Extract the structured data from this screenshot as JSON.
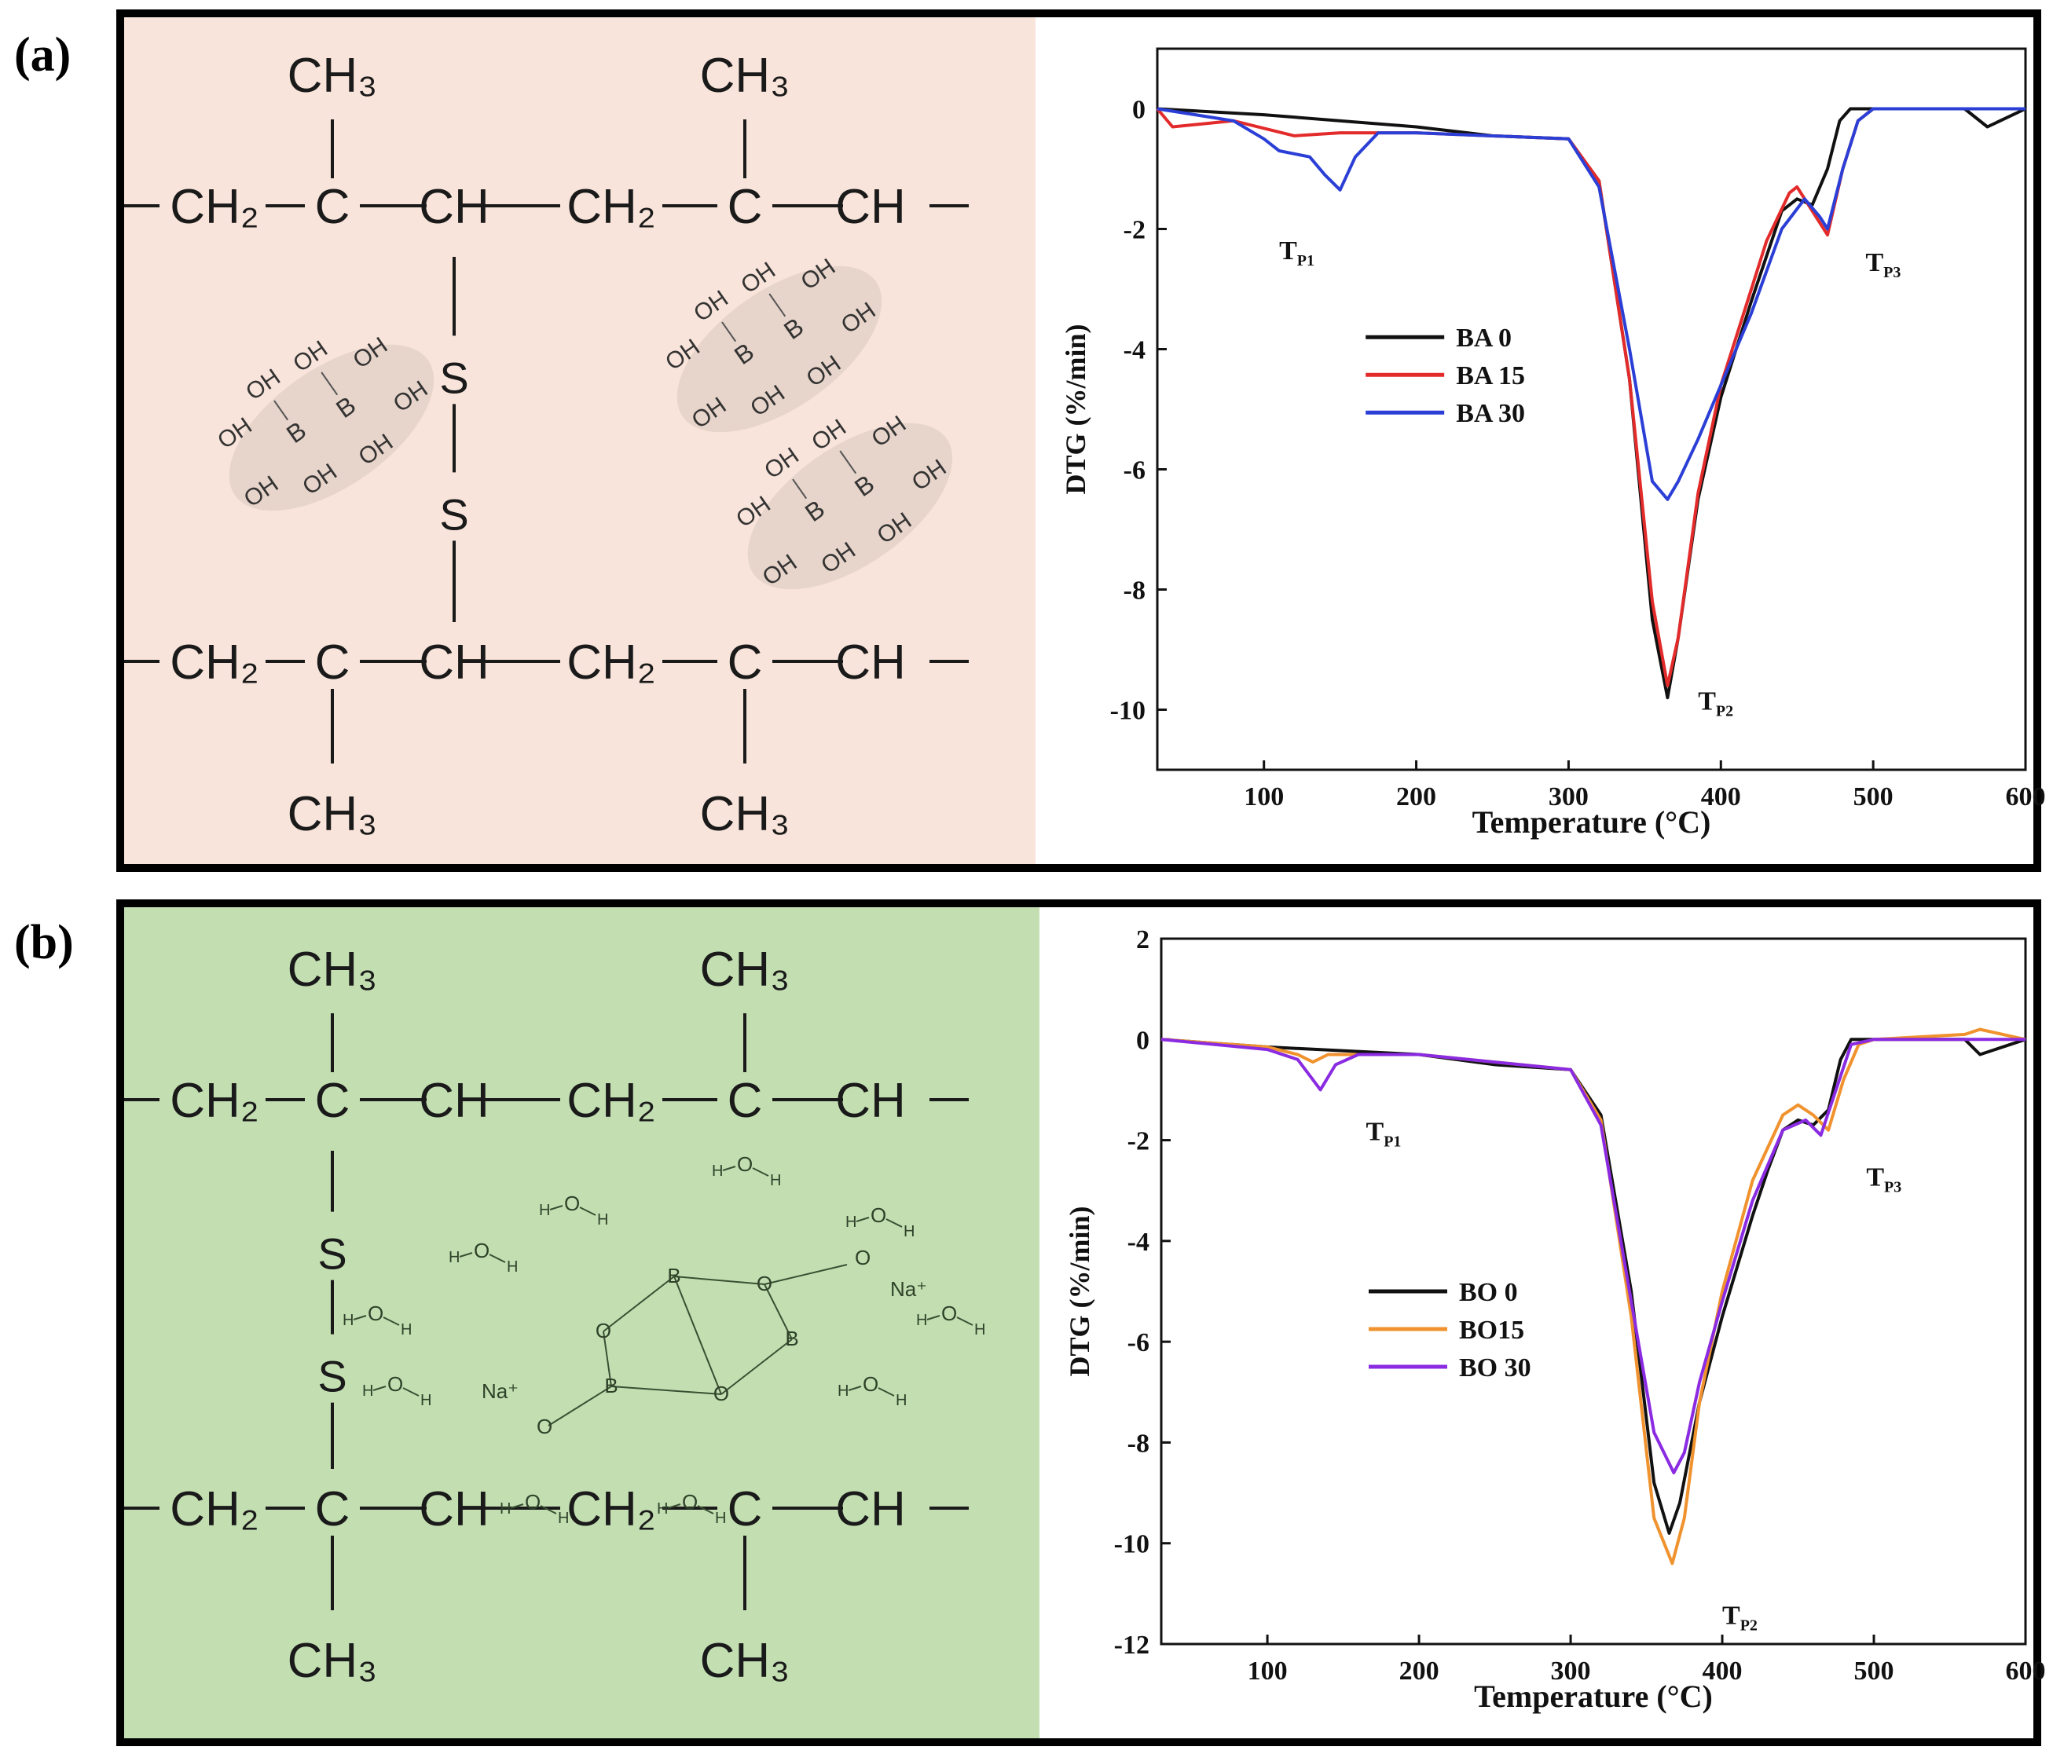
{
  "panels": [
    {
      "label": "(a)",
      "background": "#f8e4da",
      "chem": {
        "top_chain": [
          "CH₂",
          "C",
          "CH",
          "CH₂",
          "C",
          "CH"
        ],
        "bottom_chain": [
          "CH₂",
          "C",
          "CH",
          "CH₂",
          "C",
          "CH"
        ],
        "methyl": "CH₃",
        "sulfur": "S",
        "cluster_atoms": [
          "B",
          "OH"
        ]
      },
      "chart_data": {
        "type": "line",
        "xlabel": "Temperature (°C)",
        "ylabel": "DTG (%/min)",
        "xlim": [
          30,
          600
        ],
        "ylim": [
          -11,
          1
        ],
        "xticks": [
          100,
          200,
          300,
          400,
          500,
          600
        ],
        "yticks": [
          0,
          -2,
          -4,
          -6,
          -8,
          -10
        ],
        "series": [
          {
            "name": "BA 0",
            "color": "#111111",
            "x": [
              30,
              100,
              200,
              250,
              300,
              320,
              340,
              355,
              365,
              372,
              385,
              400,
              420,
              440,
              450,
              460,
              470,
              478,
              485,
              500,
              560,
              575,
              600
            ],
            "y": [
              0,
              -0.1,
              -0.3,
              -0.45,
              -0.5,
              -1.2,
              -4.5,
              -8.5,
              -9.8,
              -8.8,
              -6.5,
              -4.8,
              -3.2,
              -1.7,
              -1.5,
              -1.6,
              -1.0,
              -0.2,
              0,
              0,
              0,
              -0.3,
              0
            ]
          },
          {
            "name": "BA 15",
            "color": "#e32b2b",
            "x": [
              30,
              40,
              80,
              120,
              150,
              200,
              300,
              320,
              340,
              355,
              365,
              372,
              385,
              400,
              420,
              430,
              445,
              450,
              460,
              470,
              480,
              490,
              500,
              600
            ],
            "y": [
              0,
              -0.3,
              -0.2,
              -0.45,
              -0.4,
              -0.4,
              -0.5,
              -1.2,
              -4.5,
              -8.2,
              -9.6,
              -8.8,
              -6.4,
              -4.6,
              -3.0,
              -2.2,
              -1.4,
              -1.3,
              -1.7,
              -2.1,
              -1.0,
              -0.2,
              0,
              0
            ]
          },
          {
            "name": "BA 30",
            "color": "#2b3fd6",
            "x": [
              30,
              80,
              100,
              110,
              130,
              140,
              150,
              160,
              175,
              200,
              300,
              320,
              340,
              355,
              365,
              372,
              385,
              400,
              420,
              440,
              455,
              465,
              470,
              480,
              490,
              500,
              600
            ],
            "y": [
              0,
              -0.2,
              -0.5,
              -0.7,
              -0.8,
              -1.1,
              -1.35,
              -0.8,
              -0.4,
              -0.4,
              -0.5,
              -1.3,
              -4.0,
              -6.2,
              -6.5,
              -6.2,
              -5.5,
              -4.6,
              -3.4,
              -2.0,
              -1.5,
              -1.8,
              -2.0,
              -1.0,
              -0.2,
              0,
              0
            ]
          }
        ],
        "annotations": [
          {
            "text": "T",
            "sub": "P1",
            "x": 110,
            "y": -2.5
          },
          {
            "text": "T",
            "sub": "P2",
            "x": 385,
            "y": -10.0
          },
          {
            "text": "T",
            "sub": "P3",
            "x": 495,
            "y": -2.7
          }
        ]
      }
    },
    {
      "label": "(b)",
      "background": "#c3dfb2",
      "chem": {
        "top_chain": [
          "CH₂",
          "C",
          "CH",
          "CH₂",
          "C",
          "CH"
        ],
        "bottom_chain": [
          "CH₂",
          "C",
          "CH",
          "CH₂",
          "C",
          "CH"
        ],
        "methyl": "CH₃",
        "sulfur": "S",
        "cluster_atoms": [
          "B",
          "O",
          "Na⁺",
          "H"
        ]
      },
      "chart_data": {
        "type": "line",
        "xlabel": "Temperature (°C)",
        "ylabel": "DTG (%/min)",
        "xlim": [
          30,
          600
        ],
        "ylim": [
          -12,
          2
        ],
        "xticks": [
          100,
          200,
          300,
          400,
          500,
          600
        ],
        "yticks": [
          2,
          0,
          -2,
          -4,
          -6,
          -8,
          -10,
          -12
        ],
        "series": [
          {
            "name": "BO 0",
            "color": "#111111",
            "x": [
              30,
              100,
              200,
              250,
              300,
              320,
              340,
              355,
              365,
              372,
              385,
              400,
              420,
              430,
              440,
              450,
              460,
              470,
              478,
              485,
              500,
              560,
              570,
              600
            ],
            "y": [
              0,
              -0.15,
              -0.3,
              -0.5,
              -0.6,
              -1.5,
              -5.0,
              -8.8,
              -9.8,
              -9.2,
              -7.2,
              -5.5,
              -3.5,
              -2.6,
              -1.8,
              -1.6,
              -1.7,
              -1.4,
              -0.4,
              0,
              0,
              0,
              -0.3,
              0
            ]
          },
          {
            "name": "BO15",
            "color": "#f0922e",
            "x": [
              30,
              100,
              120,
              130,
              140,
              200,
              300,
              320,
              340,
              355,
              367,
              375,
              385,
              400,
              420,
              440,
              450,
              460,
              470,
              480,
              490,
              500,
              560,
              570,
              600
            ],
            "y": [
              0,
              -0.15,
              -0.3,
              -0.45,
              -0.3,
              -0.3,
              -0.6,
              -1.6,
              -5.5,
              -9.5,
              -10.4,
              -9.5,
              -7.2,
              -5.0,
              -2.8,
              -1.5,
              -1.3,
              -1.5,
              -1.8,
              -0.8,
              -0.1,
              0,
              0.1,
              0.2,
              0
            ]
          },
          {
            "name": "BO 30",
            "color": "#8a2be2",
            "x": [
              30,
              100,
              120,
              130,
              135,
              145,
              160,
              200,
              300,
              320,
              340,
              355,
              368,
              375,
              385,
              400,
              420,
              440,
              455,
              465,
              475,
              485,
              500,
              600
            ],
            "y": [
              0,
              -0.2,
              -0.4,
              -0.8,
              -1.0,
              -0.5,
              -0.3,
              -0.3,
              -0.6,
              -1.7,
              -5.2,
              -7.8,
              -8.6,
              -8.2,
              -6.8,
              -5.2,
              -3.2,
              -1.8,
              -1.6,
              -1.9,
              -1.0,
              -0.1,
              0,
              0
            ]
          }
        ],
        "annotations": [
          {
            "text": "T",
            "sub": "P1",
            "x": 165,
            "y": -2.0
          },
          {
            "text": "T",
            "sub": "P2",
            "x": 400,
            "y": -11.6
          },
          {
            "text": "T",
            "sub": "P3",
            "x": 495,
            "y": -2.9
          }
        ]
      }
    }
  ]
}
